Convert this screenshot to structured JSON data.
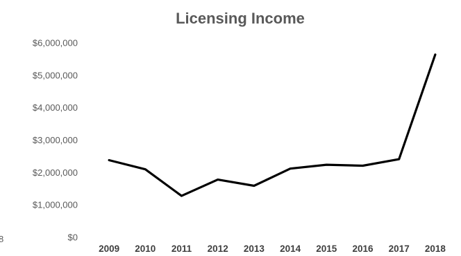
{
  "chart_data": {
    "type": "line",
    "title": "Licensing Income",
    "xlabel": "",
    "ylabel": "",
    "categories": [
      "2009",
      "2010",
      "2011",
      "2012",
      "2013",
      "2014",
      "2015",
      "2016",
      "2017",
      "2018"
    ],
    "series": [
      {
        "values": [
          2380000,
          2100000,
          1280000,
          1780000,
          1590000,
          2120000,
          2240000,
          2210000,
          2410000,
          5640000
        ]
      }
    ],
    "ylim": [
      0,
      6000000
    ],
    "yticks": [
      "$0",
      "$1,000,000",
      "$2,000,000",
      "$3,000,000",
      "$4,000,000",
      "$5,000,000",
      "$6,000,000"
    ],
    "grid": false,
    "legend": "none",
    "line_color": "#000000"
  },
  "edge_fragments": {
    "left": "8"
  }
}
